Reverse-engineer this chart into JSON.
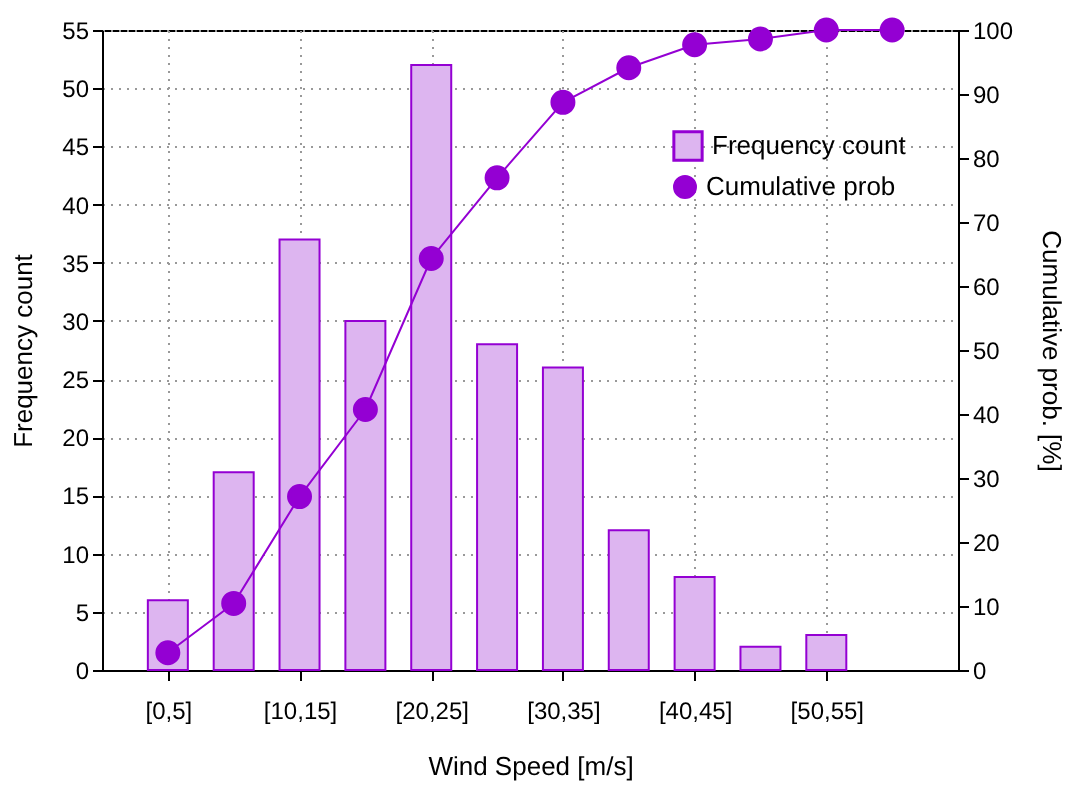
{
  "chart_data": {
    "type": "bar",
    "xlabel": "Wind Speed [m/s]",
    "ylabel": "Frequency count",
    "y2label": "Cumulative prob. [%]",
    "categories": [
      "[0,5]",
      null,
      "[10,15]",
      null,
      "[20,25]",
      null,
      "[30,35]",
      null,
      "[40,45]",
      null,
      "[50,55]",
      null
    ],
    "series": [
      {
        "name": "Frequency count",
        "color": "#ddb5f0",
        "values": [
          6,
          17,
          37,
          30,
          52,
          28,
          26,
          12,
          8,
          2,
          3,
          null
        ]
      },
      {
        "name": "Cumulative prob",
        "type": "line",
        "axis": "y2",
        "color": "#9400d3",
        "values": [
          2.7,
          10.4,
          27.1,
          40.7,
          64.3,
          76.9,
          88.7,
          94.1,
          97.7,
          98.6,
          100,
          100
        ]
      }
    ],
    "ylim": [
      0,
      55
    ],
    "yticks": [
      0,
      5,
      10,
      15,
      20,
      25,
      30,
      35,
      40,
      45,
      50,
      55
    ],
    "y2lim": [
      0,
      100
    ],
    "y2ticks": [
      0,
      10,
      20,
      30,
      40,
      50,
      60,
      70,
      80,
      90,
      100
    ],
    "grid": true,
    "legend": "top right",
    "marker": "circle"
  }
}
